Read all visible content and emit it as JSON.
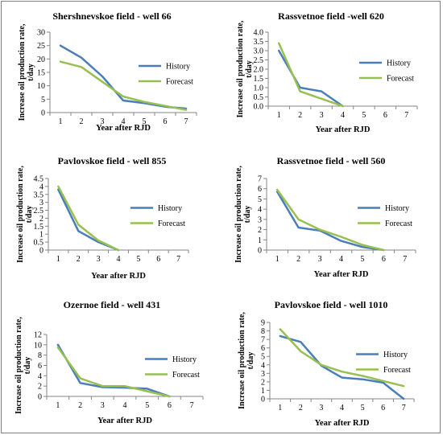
{
  "colors": {
    "history": "#4a7ebb",
    "forecast": "#98c050",
    "axis": "#868686"
  },
  "chart_data": [
    {
      "type": "line",
      "title": "Shershnevskoe field - well 66",
      "xlabel": "Year after RJD",
      "ylabel": "Increase oil production rate, t/day",
      "x": [
        1,
        2,
        3,
        4,
        5,
        6,
        7
      ],
      "xticks": [
        "1",
        "2",
        "3",
        "4",
        "5",
        "6",
        "7"
      ],
      "ylim": [
        0,
        30
      ],
      "yticks": [
        "0",
        "5",
        "10",
        "15",
        "20",
        "25",
        "30"
      ],
      "series": [
        {
          "name": "History",
          "values": [
            25,
            20.5,
            13.5,
            4.5,
            3.5,
            2.2,
            1.5
          ]
        },
        {
          "name": "Forecast",
          "values": [
            19,
            17,
            11.5,
            6,
            4,
            2.5,
            1
          ]
        }
      ],
      "legend": "right"
    },
    {
      "type": "line",
      "title": "Rassvetnoe field -well 620",
      "xlabel": "Year after RJD",
      "ylabel": "Increase oil production rate, t/day",
      "x": [
        1,
        2,
        3,
        4
      ],
      "xticks": [
        "1",
        "2",
        "3",
        "4",
        "5",
        "6",
        "7"
      ],
      "ylim": [
        0,
        4
      ],
      "yticks": [
        "0.0",
        "0.5",
        "1.0",
        "1.5",
        "2.0",
        "2.5",
        "3.0",
        "3.5",
        "4.0"
      ],
      "series": [
        {
          "name": "History",
          "values": [
            3.0,
            1.0,
            0.8,
            0.0
          ]
        },
        {
          "name": "Forecast",
          "values": [
            3.4,
            0.8,
            0.4,
            0.0
          ]
        }
      ],
      "legend": "right"
    },
    {
      "type": "line",
      "title": "Pavlovskoe field - well 855",
      "xlabel": "Year after RJD",
      "ylabel": "Increase oil production rate, t/day",
      "x": [
        1,
        2,
        3,
        4
      ],
      "xticks": [
        "1",
        "2",
        "3",
        "4",
        "5",
        "6",
        "7"
      ],
      "ylim": [
        0,
        4.5
      ],
      "yticks": [
        "0",
        "0.5",
        "1",
        "1.5",
        "2",
        "2.5",
        "3",
        "3.5",
        "4",
        "4.5"
      ],
      "series": [
        {
          "name": "History",
          "values": [
            3.8,
            1.2,
            0.5,
            0.0
          ]
        },
        {
          "name": "Forecast",
          "values": [
            4.0,
            1.6,
            0.6,
            0.0
          ]
        }
      ],
      "legend": "right"
    },
    {
      "type": "line",
      "title": "Rassvetnoe field - well 560",
      "xlabel": "Year after RJD",
      "ylabel": "Increase oil production rate, t/day",
      "x": [
        1,
        2,
        3,
        4,
        5,
        6
      ],
      "xticks": [
        "1",
        "2",
        "3",
        "4",
        "5",
        "6",
        "7"
      ],
      "ylim": [
        0,
        7
      ],
      "yticks": [
        "0",
        "1",
        "2",
        "3",
        "4",
        "5",
        "6",
        "7"
      ],
      "series": [
        {
          "name": "History",
          "values": [
            5.7,
            2.2,
            1.9,
            0.9,
            0.3,
            0.0
          ]
        },
        {
          "name": "Forecast",
          "values": [
            5.9,
            3.0,
            2.0,
            1.3,
            0.5,
            0.0
          ]
        }
      ],
      "legend": "right"
    },
    {
      "type": "line",
      "title": "Ozernoe field  - well 431",
      "xlabel": "Year after RJD",
      "ylabel": "Increase oil production rate, t/day",
      "x": [
        1,
        2,
        3,
        4,
        5,
        6
      ],
      "xticks": [
        "1",
        "2",
        "3",
        "4",
        "5",
        "6",
        "7"
      ],
      "ylim": [
        0,
        12
      ],
      "yticks": [
        "0",
        "2",
        "4",
        "6",
        "8",
        "10",
        "12"
      ],
      "series": [
        {
          "name": "History",
          "values": [
            10,
            2.6,
            1.8,
            1.7,
            1.5,
            0.0
          ]
        },
        {
          "name": "Forecast",
          "values": [
            9.5,
            3.5,
            2.0,
            2.0,
            1.0,
            0.0
          ]
        }
      ],
      "legend": "right"
    },
    {
      "type": "line",
      "title": "Pavlovskoe field - well 1010",
      "xlabel": "Year after RJD",
      "ylabel": "Increase oil production rate, t/day",
      "x": [
        1,
        2,
        3,
        4,
        5,
        6,
        7
      ],
      "xticks": [
        "1",
        "2",
        "3",
        "4",
        "5",
        "6",
        "7"
      ],
      "ylim": [
        0,
        9
      ],
      "yticks": [
        "0",
        "1",
        "2",
        "3",
        "4",
        "5",
        "6",
        "7",
        "8",
        "9"
      ],
      "series": [
        {
          "name": "History",
          "values": [
            7.4,
            6.7,
            3.9,
            2.5,
            2.3,
            1.9,
            0.0
          ]
        },
        {
          "name": "Forecast",
          "values": [
            8.2,
            5.6,
            4.0,
            3.2,
            2.7,
            2.1,
            1.5
          ]
        }
      ],
      "legend": "right"
    }
  ]
}
